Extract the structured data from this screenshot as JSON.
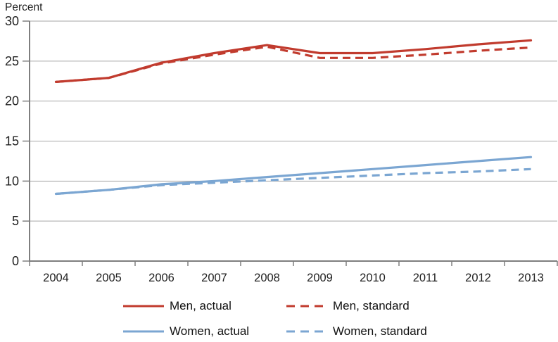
{
  "colors": {
    "men": "#c13b2e",
    "women": "#7ba6d2",
    "grid": "#a6a6a6",
    "axis": "#7f7f7f",
    "text": "#1f1f1f"
  },
  "chart_data": {
    "type": "line",
    "title": "",
    "ylabel": "Percent",
    "xlabel": "",
    "categories": [
      "2004",
      "2005",
      "2006",
      "2007",
      "2008",
      "2009",
      "2010",
      "2011",
      "2012",
      "2013"
    ],
    "yticks": [
      0,
      5,
      10,
      15,
      20,
      25,
      30
    ],
    "ylim": [
      0,
      30
    ],
    "grid": true,
    "legend_position": "bottom",
    "series": [
      {
        "name": "Men, actual",
        "color": "#c13b2e",
        "dash": "solid",
        "values": [
          22.4,
          22.9,
          24.8,
          26.0,
          27.0,
          26.0,
          26.0,
          26.5,
          27.1,
          27.6
        ]
      },
      {
        "name": "Men, standard",
        "color": "#c13b2e",
        "dash": "dashed",
        "values": [
          22.4,
          22.9,
          24.7,
          25.8,
          26.8,
          25.4,
          25.4,
          25.8,
          26.3,
          26.7
        ]
      },
      {
        "name": "Women, actual",
        "color": "#7ba6d2",
        "dash": "solid",
        "values": [
          8.4,
          8.9,
          9.6,
          10.0,
          10.5,
          11.0,
          11.5,
          12.0,
          12.5,
          13.0
        ]
      },
      {
        "name": "Women, standard",
        "color": "#7ba6d2",
        "dash": "dashed",
        "values": [
          8.4,
          8.9,
          9.5,
          9.8,
          10.1,
          10.4,
          10.7,
          11.0,
          11.2,
          11.5
        ]
      }
    ]
  }
}
